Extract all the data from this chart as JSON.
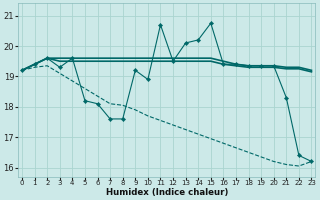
{
  "xlabel": "Humidex (Indice chaleur)",
  "background_color": "#cce9e8",
  "grid_color": "#aad4d0",
  "line_color": "#006868",
  "xlim": [
    -0.3,
    23.3
  ],
  "ylim": [
    15.7,
    21.4
  ],
  "yticks": [
    16,
    17,
    18,
    19,
    20,
    21
  ],
  "xticks": [
    0,
    1,
    2,
    3,
    4,
    5,
    6,
    7,
    8,
    9,
    10,
    11,
    12,
    13,
    14,
    15,
    16,
    17,
    18,
    19,
    20,
    21,
    22,
    23
  ],
  "series1_jagged": [
    19.2,
    19.4,
    19.6,
    19.3,
    19.6,
    18.2,
    18.1,
    17.6,
    17.6,
    19.2,
    18.9,
    20.7,
    19.5,
    20.1,
    20.2,
    20.75,
    19.4,
    19.4,
    19.35,
    19.35,
    19.35,
    18.3,
    16.4,
    16.2
  ],
  "series2_upper_flat": [
    19.2,
    19.4,
    19.6,
    19.6,
    19.6,
    19.6,
    19.6,
    19.6,
    19.6,
    19.6,
    19.6,
    19.6,
    19.6,
    19.6,
    19.6,
    19.6,
    19.5,
    19.4,
    19.35,
    19.35,
    19.35,
    19.3,
    19.3,
    19.2
  ],
  "series3_lower_flat": [
    19.2,
    19.4,
    19.6,
    19.5,
    19.5,
    19.5,
    19.5,
    19.5,
    19.5,
    19.5,
    19.5,
    19.5,
    19.5,
    19.5,
    19.5,
    19.5,
    19.4,
    19.35,
    19.3,
    19.3,
    19.3,
    19.25,
    19.25,
    19.15
  ],
  "series4_diagonal": [
    19.2,
    19.3,
    19.35,
    19.1,
    18.85,
    18.6,
    18.35,
    18.1,
    18.05,
    17.9,
    17.7,
    17.55,
    17.4,
    17.25,
    17.1,
    16.95,
    16.8,
    16.65,
    16.5,
    16.35,
    16.2,
    16.1,
    16.05,
    16.2
  ]
}
